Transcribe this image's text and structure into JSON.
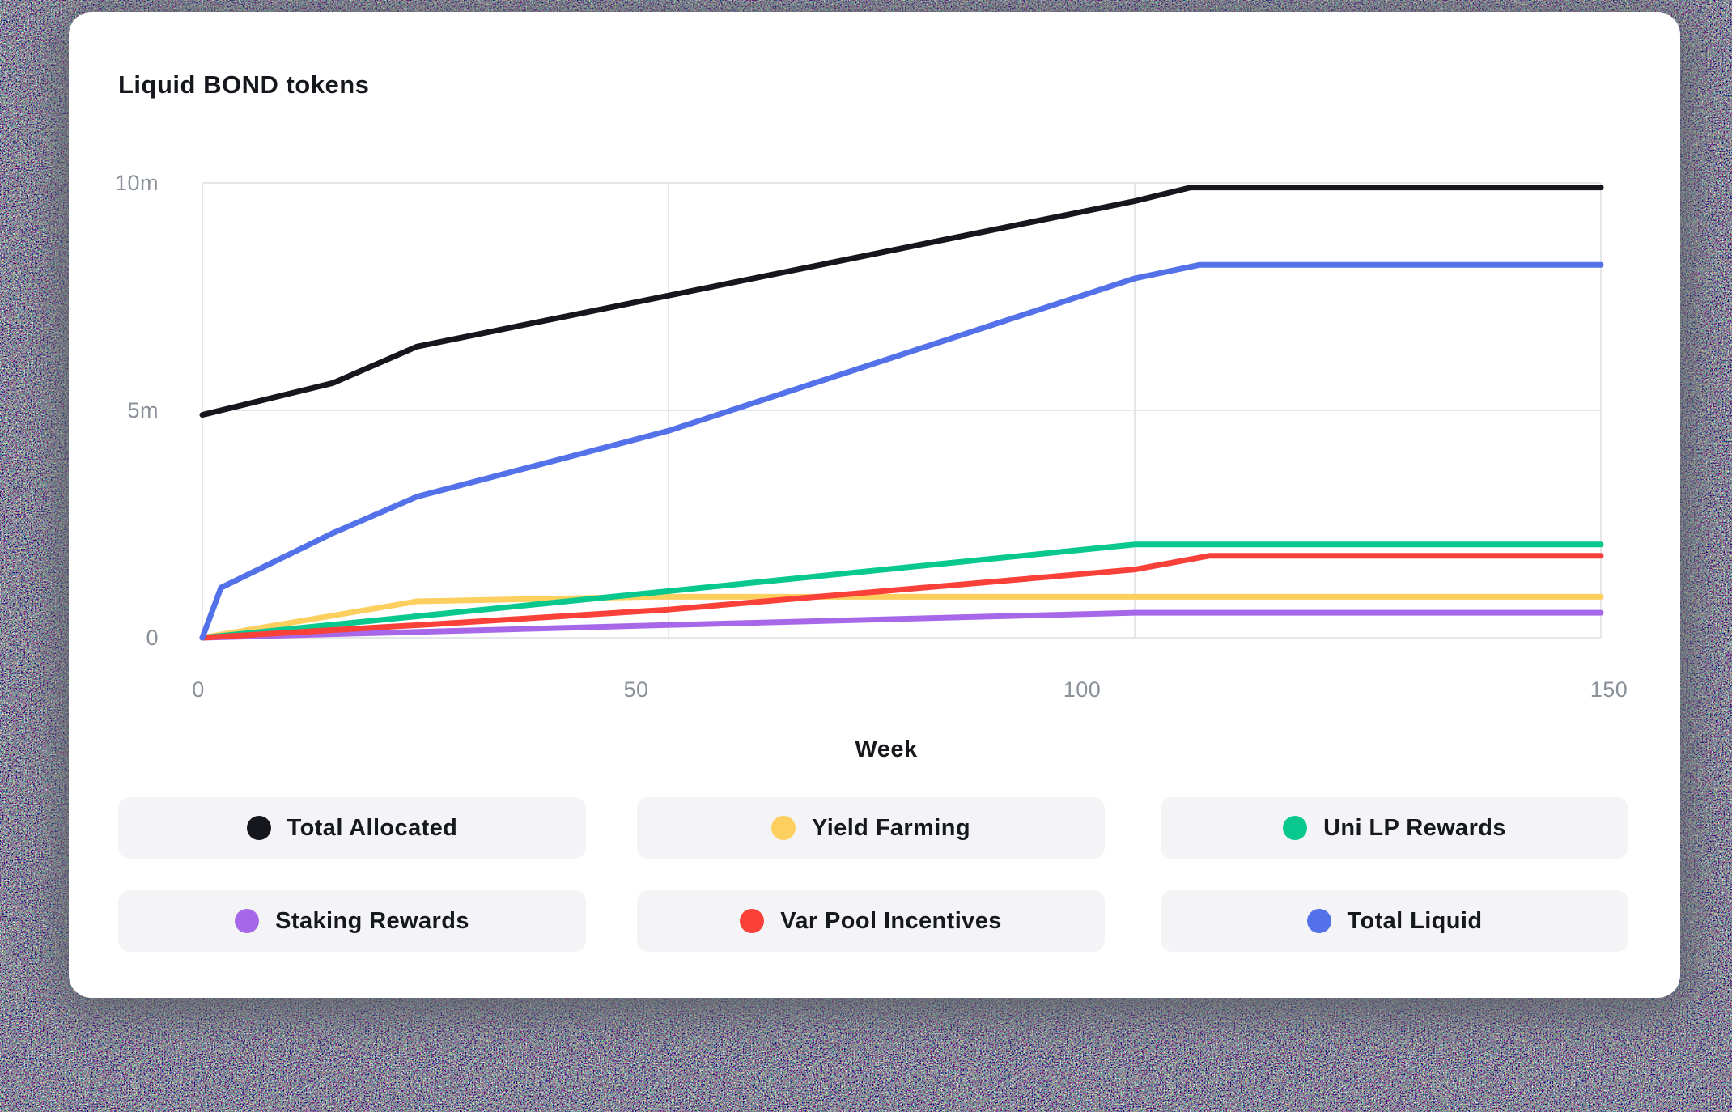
{
  "card": {
    "title": "Liquid BOND tokens"
  },
  "chart_data": {
    "type": "line",
    "title": "Liquid BOND tokens",
    "xlabel": "Week",
    "ylabel": "",
    "unit": "BOND tokens (m = millions)",
    "xlim": [
      0,
      150
    ],
    "ylim": [
      0,
      10
    ],
    "x_ticks": [
      0,
      50,
      100,
      150
    ],
    "x_tick_labels": [
      "0",
      "50",
      "100",
      "150"
    ],
    "y_ticks": [
      0,
      5,
      10
    ],
    "y_tick_labels": [
      "0",
      "5m",
      "10m"
    ],
    "grid": true,
    "grid_color": "#e4e6e9",
    "legend_position": "bottom",
    "series": [
      {
        "name": "Total Allocated",
        "color": "#15171c",
        "points": [
          [
            0,
            4.9
          ],
          [
            14,
            5.6
          ],
          [
            23,
            6.4
          ],
          [
            100,
            9.6
          ],
          [
            106,
            9.9
          ],
          [
            150,
            9.9
          ]
        ]
      },
      {
        "name": "Yield Farming",
        "color": "#fccf5f",
        "points": [
          [
            0,
            0
          ],
          [
            23,
            0.8
          ],
          [
            48,
            0.9
          ],
          [
            150,
            0.9
          ]
        ]
      },
      {
        "name": "Uni LP Rewards",
        "color": "#09c88e",
        "points": [
          [
            0,
            0
          ],
          [
            100,
            2.05
          ],
          [
            150,
            2.05
          ]
        ]
      },
      {
        "name": "Staking Rewards",
        "color": "#a668e8",
        "points": [
          [
            0,
            0
          ],
          [
            50,
            0.28
          ],
          [
            100,
            0.55
          ],
          [
            150,
            0.55
          ]
        ]
      },
      {
        "name": "Var Pool Incentives",
        "color": "#f94139",
        "points": [
          [
            0,
            0
          ],
          [
            25,
            0.3
          ],
          [
            50,
            0.62
          ],
          [
            100,
            1.5
          ],
          [
            108,
            1.8
          ],
          [
            150,
            1.8
          ]
        ]
      },
      {
        "name": "Total Liquid",
        "color": "#5371e9",
        "points": [
          [
            0,
            0
          ],
          [
            2,
            1.1
          ],
          [
            14,
            2.3
          ],
          [
            23,
            3.1
          ],
          [
            50,
            4.55
          ],
          [
            100,
            7.9
          ],
          [
            107,
            8.2
          ],
          [
            150,
            8.2
          ]
        ]
      }
    ]
  },
  "legend": {
    "items": [
      {
        "label": "Total Allocated",
        "color": "#15171c"
      },
      {
        "label": "Yield Farming",
        "color": "#fccf5f"
      },
      {
        "label": "Uni LP Rewards",
        "color": "#09c88e"
      },
      {
        "label": "Staking Rewards",
        "color": "#a668e8"
      },
      {
        "label": "Var Pool Incentives",
        "color": "#f94139"
      },
      {
        "label": "Total Liquid",
        "color": "#5371e9"
      }
    ]
  }
}
